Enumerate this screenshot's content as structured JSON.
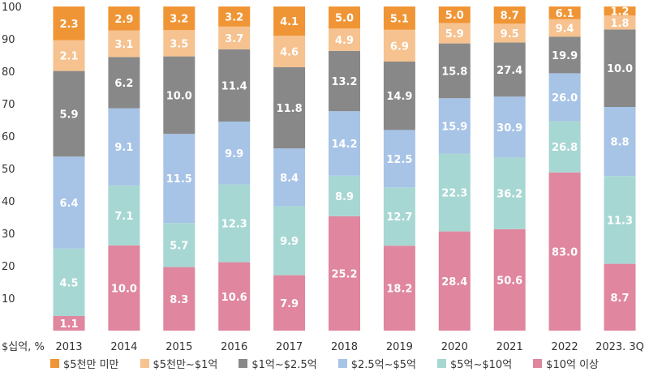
{
  "chart_data": {
    "type": "bar",
    "stacked": true,
    "title": "",
    "xlabel": "",
    "ylabel": "$십억, %",
    "ylim": [
      0,
      100
    ],
    "yticks": [
      "10",
      "20",
      "30",
      "40",
      "50",
      "60",
      "70",
      "80",
      "90",
      "100"
    ],
    "grid": false,
    "legend_position": "bottom",
    "categories": [
      "2013",
      "2014",
      "2015",
      "2016",
      "2017",
      "2018",
      "2019",
      "2020",
      "2021",
      "2022",
      "2023. 3Q"
    ],
    "series": [
      {
        "name": "$10억 이상",
        "color": "#e0869f",
        "labels": [
          "1.1",
          "10.0",
          "8.3",
          "10.6",
          "7.9",
          "25.2",
          "18.2",
          "28.4",
          "50.6",
          "83.0",
          "8.7"
        ],
        "values": [
          4.5,
          26.3,
          19.6,
          21.1,
          17.1,
          35.3,
          26.2,
          30.6,
          31.3,
          48.8,
          20.6
        ]
      },
      {
        "name": "$5억~$10억",
        "color": "#a7d7d3",
        "labels": [
          "4.5",
          "7.1",
          "5.7",
          "12.3",
          "9.9",
          "8.9",
          "12.7",
          "22.3",
          "36.2",
          "26.8",
          "11.3"
        ],
        "values": [
          20.8,
          18.5,
          13.6,
          24.0,
          21.3,
          12.5,
          18.0,
          24.0,
          22.1,
          15.8,
          27.1
        ]
      },
      {
        "name": "$2.5억~$5억",
        "color": "#a7c3e6",
        "labels": [
          "6.4",
          "9.1",
          "11.5",
          "9.9",
          "8.4",
          "14.2",
          "12.5",
          "15.9",
          "30.9",
          "26.0",
          "8.8"
        ],
        "values": [
          28.4,
          23.8,
          27.5,
          19.4,
          17.8,
          19.9,
          17.7,
          17.1,
          18.8,
          14.8,
          21.3
        ]
      },
      {
        "name": "$1억~$2.5억",
        "color": "#888888",
        "labels": [
          "5.9",
          "6.2",
          "10.0",
          "11.4",
          "11.8",
          "13.2",
          "14.9",
          "15.8",
          "27.4",
          "19.9",
          "10.0"
        ],
        "values": [
          26.4,
          15.8,
          23.9,
          22.3,
          25.1,
          18.6,
          21.1,
          16.9,
          16.7,
          11.3,
          23.9
        ]
      },
      {
        "name": "$5천만~$1억",
        "color": "#f6c28f",
        "labels": [
          "2.1",
          "3.1",
          "3.5",
          "3.7",
          "4.6",
          "4.9",
          "6.9",
          "5.9",
          "9.5",
          "9.4",
          "1.8"
        ],
        "values": [
          9.5,
          8.2,
          8.1,
          7.0,
          9.7,
          6.9,
          9.8,
          6.3,
          5.8,
          5.4,
          4.3
        ]
      },
      {
        "name": "$5천만 미만",
        "color": "#f09535",
        "labels": [
          "2.3",
          "2.9",
          "3.2",
          "3.2",
          "4.1",
          "5.0",
          "5.1",
          "5.0",
          "8.7",
          "6.1",
          "1.2"
        ],
        "values": [
          10.4,
          7.4,
          7.3,
          6.2,
          9.0,
          6.8,
          7.2,
          5.1,
          5.3,
          3.9,
          2.8
        ]
      }
    ]
  }
}
